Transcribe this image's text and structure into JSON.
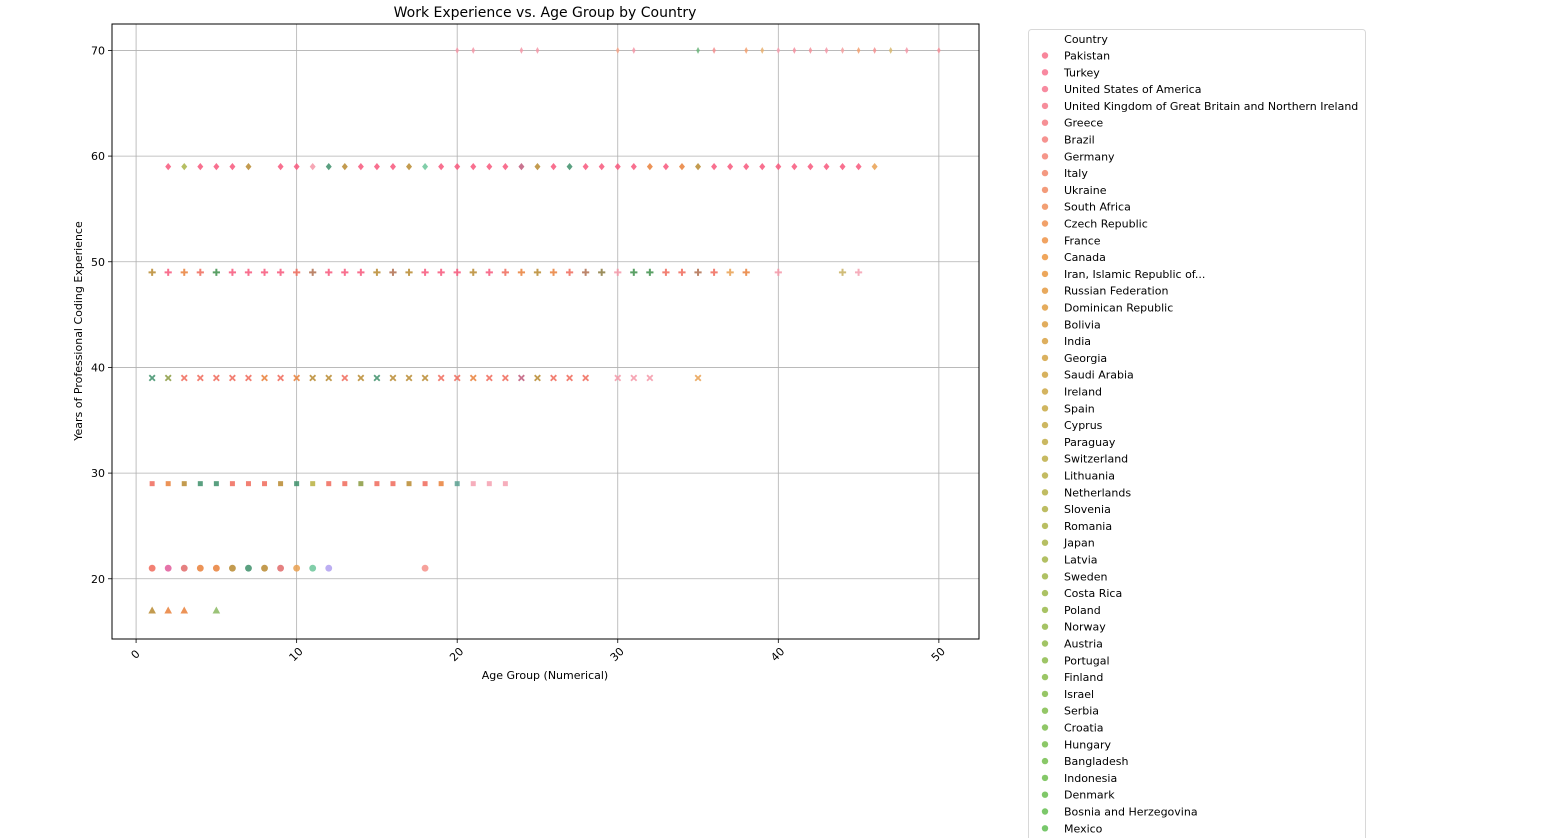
{
  "chart_data": {
    "type": "scatter",
    "title": "Work Experience vs. Age Group by Country",
    "xlabel": "Age Group (Numerical)",
    "ylabel": "Years of Professional Coding Experience",
    "xlim": [
      -1.5,
      52.5
    ],
    "ylim": [
      14.3,
      72.5
    ],
    "xticks": [
      0,
      10,
      20,
      30,
      40,
      50
    ],
    "yticks": [
      20,
      30,
      40,
      50,
      60,
      70
    ],
    "grid": true,
    "legend": {
      "title": "Country",
      "placement": "outside-right",
      "entries": [
        {
          "name": "Pakistan",
          "color": "#f77189"
        },
        {
          "name": "Turkey",
          "color": "#f7738f"
        },
        {
          "name": "United States of America",
          "color": "#f6778f"
        },
        {
          "name": "United Kingdom of Great Britain and Northern Ireland",
          "color": "#f5798a"
        },
        {
          "name": "Greece",
          "color": "#f47d83"
        },
        {
          "name": "Brazil",
          "color": "#f4807c"
        },
        {
          "name": "Germany",
          "color": "#f38475"
        },
        {
          "name": "Italy",
          "color": "#f2876b"
        },
        {
          "name": "Ukraine",
          "color": "#f18a63"
        },
        {
          "name": "South Africa",
          "color": "#f08e5a"
        },
        {
          "name": "Czech Republic",
          "color": "#ef9150"
        },
        {
          "name": "France",
          "color": "#ee9346"
        },
        {
          "name": "Canada",
          "color": "#ed963f"
        },
        {
          "name": "Iran, Islamic Republic of...",
          "color": "#e9983f"
        },
        {
          "name": "Russian Federation",
          "color": "#e49a41"
        },
        {
          "name": "Dominican Republic",
          "color": "#e09d41"
        },
        {
          "name": "Bolivia",
          "color": "#dc9f42"
        },
        {
          "name": "India",
          "color": "#d8a142"
        },
        {
          "name": "Georgia",
          "color": "#d4a343"
        },
        {
          "name": "Saudi Arabia",
          "color": "#d0a543"
        },
        {
          "name": "Ireland",
          "color": "#cca744"
        },
        {
          "name": "Spain",
          "color": "#c8a944"
        },
        {
          "name": "Cyprus",
          "color": "#c4aa45"
        },
        {
          "name": "Paraguay",
          "color": "#c1ac45"
        },
        {
          "name": "Switzerland",
          "color": "#bdae46"
        },
        {
          "name": "Lithuania",
          "color": "#b9af46"
        },
        {
          "name": "Netherlands",
          "color": "#b5b047"
        },
        {
          "name": "Slovenia",
          "color": "#b1b247"
        },
        {
          "name": "Romania",
          "color": "#adb347"
        },
        {
          "name": "Japan",
          "color": "#a9b448"
        },
        {
          "name": "Latvia",
          "color": "#a5b548"
        },
        {
          "name": "Sweden",
          "color": "#a1b649"
        },
        {
          "name": "Costa Rica",
          "color": "#9db749"
        },
        {
          "name": "Poland",
          "color": "#99b849"
        },
        {
          "name": "Norway",
          "color": "#95b94a"
        },
        {
          "name": "Austria",
          "color": "#91ba4a"
        },
        {
          "name": "Portugal",
          "color": "#8dbb4b"
        },
        {
          "name": "Finland",
          "color": "#89bc4b"
        },
        {
          "name": "Israel",
          "color": "#85bc4b"
        },
        {
          "name": "Serbia",
          "color": "#81bd4c"
        },
        {
          "name": "Croatia",
          "color": "#7cbd4c"
        },
        {
          "name": "Hungary",
          "color": "#78be4d"
        },
        {
          "name": "Bangladesh",
          "color": "#74be4d"
        },
        {
          "name": "Indonesia",
          "color": "#6fbe4e"
        },
        {
          "name": "Denmark",
          "color": "#6abe4f"
        },
        {
          "name": "Bosnia and Herzegovina",
          "color": "#65be50"
        },
        {
          "name": "Mexico",
          "color": "#60be52"
        }
      ]
    },
    "series": [
      {
        "y": 70,
        "marker": "thin_diamond",
        "points": [
          [
            20,
            "#f598a8"
          ],
          [
            21,
            "#f598a8"
          ],
          [
            24,
            "#f598a8"
          ],
          [
            25,
            "#f598a8"
          ],
          [
            30,
            "#f5a58a"
          ],
          [
            31,
            "#f598a8"
          ],
          [
            35,
            "#6bb57a"
          ],
          [
            36,
            "#f58f8f"
          ],
          [
            38,
            "#f3a070"
          ],
          [
            39,
            "#e9b070"
          ],
          [
            40,
            "#f5a0b0"
          ],
          [
            41,
            "#f58f9f"
          ],
          [
            42,
            "#f5909a"
          ],
          [
            43,
            "#f598a8"
          ],
          [
            44,
            "#f5a0a0"
          ],
          [
            45,
            "#f3a070"
          ],
          [
            46,
            "#f59090"
          ],
          [
            47,
            "#d8b870"
          ],
          [
            48,
            "#f598a8"
          ],
          [
            50,
            "#f5909a"
          ]
        ]
      },
      {
        "y": 59,
        "marker": "diamond",
        "points": [
          [
            2,
            "#f7577b"
          ],
          [
            3,
            "#a9b448"
          ],
          [
            4,
            "#f7577b"
          ],
          [
            5,
            "#f7577b"
          ],
          [
            6,
            "#f7577b"
          ],
          [
            7,
            "#b98a30"
          ],
          [
            9,
            "#f7577b"
          ],
          [
            10,
            "#f7577b"
          ],
          [
            11,
            "#f598a8"
          ],
          [
            12,
            "#3d8f6a"
          ],
          [
            13,
            "#b98a30"
          ],
          [
            14,
            "#f7577b"
          ],
          [
            15,
            "#f7577b"
          ],
          [
            16,
            "#f7577b"
          ],
          [
            17,
            "#b98a30"
          ],
          [
            18,
            "#6bc69a"
          ],
          [
            19,
            "#f7577b"
          ],
          [
            20,
            "#f7577b"
          ],
          [
            21,
            "#f7577b"
          ],
          [
            22,
            "#f7577b"
          ],
          [
            23,
            "#f7577b"
          ],
          [
            24,
            "#c05a7b"
          ],
          [
            25,
            "#b98a30"
          ],
          [
            26,
            "#f7577b"
          ],
          [
            27,
            "#3d8f6a"
          ],
          [
            28,
            "#f7577b"
          ],
          [
            29,
            "#f7577b"
          ],
          [
            30,
            "#f7577b"
          ],
          [
            31,
            "#f7577b"
          ],
          [
            32,
            "#e9803a"
          ],
          [
            33,
            "#f7577b"
          ],
          [
            34,
            "#e9803a"
          ],
          [
            35,
            "#b98a30"
          ],
          [
            36,
            "#f7577b"
          ],
          [
            37,
            "#f7577b"
          ],
          [
            38,
            "#f7577b"
          ],
          [
            39,
            "#f7577b"
          ],
          [
            40,
            "#f7577b"
          ],
          [
            41,
            "#f7577b"
          ],
          [
            42,
            "#f7577b"
          ],
          [
            43,
            "#f7577b"
          ],
          [
            44,
            "#f7577b"
          ],
          [
            45,
            "#f7577b"
          ],
          [
            46,
            "#e9a050"
          ]
        ]
      },
      {
        "y": 49,
        "marker": "plus",
        "points": [
          [
            1,
            "#b98a30"
          ],
          [
            2,
            "#f7577b"
          ],
          [
            3,
            "#e9803a"
          ],
          [
            4,
            "#f06a5a"
          ],
          [
            5,
            "#3d8f4a"
          ],
          [
            6,
            "#f7577b"
          ],
          [
            7,
            "#f7577b"
          ],
          [
            8,
            "#f7577b"
          ],
          [
            9,
            "#f7577b"
          ],
          [
            10,
            "#f06a5a"
          ],
          [
            11,
            "#b07050"
          ],
          [
            12,
            "#f7577b"
          ],
          [
            13,
            "#f7577b"
          ],
          [
            14,
            "#f7577b"
          ],
          [
            15,
            "#b98a30"
          ],
          [
            16,
            "#b07050"
          ],
          [
            17,
            "#b98a30"
          ],
          [
            18,
            "#f7577b"
          ],
          [
            19,
            "#f7577b"
          ],
          [
            20,
            "#f7577b"
          ],
          [
            21,
            "#b98a30"
          ],
          [
            22,
            "#f7577b"
          ],
          [
            23,
            "#f06a5a"
          ],
          [
            24,
            "#e9803a"
          ],
          [
            25,
            "#b98a30"
          ],
          [
            26,
            "#e9803a"
          ],
          [
            27,
            "#f06a5a"
          ],
          [
            28,
            "#b07050"
          ],
          [
            29,
            "#8a7a40"
          ],
          [
            30,
            "#f598a8"
          ],
          [
            31,
            "#3d8f4a"
          ],
          [
            32,
            "#3d8f4a"
          ],
          [
            33,
            "#f06a5a"
          ],
          [
            34,
            "#f06a5a"
          ],
          [
            35,
            "#b07050"
          ],
          [
            36,
            "#f06a5a"
          ],
          [
            37,
            "#e9a050"
          ],
          [
            38,
            "#e9803a"
          ],
          [
            40,
            "#f598a8"
          ],
          [
            44,
            "#c8b060"
          ],
          [
            45,
            "#f5a0b0"
          ]
        ]
      },
      {
        "y": 39,
        "marker": "x",
        "points": [
          [
            1,
            "#3d8f6a"
          ],
          [
            2,
            "#8a9a40"
          ],
          [
            3,
            "#f06a5a"
          ],
          [
            4,
            "#f06a5a"
          ],
          [
            5,
            "#f06a5a"
          ],
          [
            6,
            "#f06a5a"
          ],
          [
            7,
            "#f06a5a"
          ],
          [
            8,
            "#e9803a"
          ],
          [
            9,
            "#f06a5a"
          ],
          [
            10,
            "#e9803a"
          ],
          [
            11,
            "#b98a30"
          ],
          [
            12,
            "#b98a30"
          ],
          [
            13,
            "#f06a5a"
          ],
          [
            14,
            "#b98a30"
          ],
          [
            15,
            "#3d8f6a"
          ],
          [
            16,
            "#b98a30"
          ],
          [
            17,
            "#b98a30"
          ],
          [
            18,
            "#b98a30"
          ],
          [
            19,
            "#f06a5a"
          ],
          [
            20,
            "#f06a5a"
          ],
          [
            21,
            "#e9803a"
          ],
          [
            22,
            "#f06a5a"
          ],
          [
            23,
            "#f06a5a"
          ],
          [
            24,
            "#c05a7b"
          ],
          [
            25,
            "#b98a30"
          ],
          [
            26,
            "#f06a5a"
          ],
          [
            27,
            "#f06a5a"
          ],
          [
            28,
            "#f06a5a"
          ],
          [
            30,
            "#f598a8"
          ],
          [
            31,
            "#f598a8"
          ],
          [
            32,
            "#f598a8"
          ],
          [
            35,
            "#e9a050"
          ]
        ]
      },
      {
        "y": 29,
        "marker": "square",
        "points": [
          [
            1,
            "#f06a5a"
          ],
          [
            2,
            "#e9803a"
          ],
          [
            3,
            "#b98a30"
          ],
          [
            4,
            "#3d8f6a"
          ],
          [
            5,
            "#3d8f6a"
          ],
          [
            6,
            "#f06a5a"
          ],
          [
            7,
            "#f06a5a"
          ],
          [
            8,
            "#f06a5a"
          ],
          [
            9,
            "#b98a30"
          ],
          [
            10,
            "#3d8f6a"
          ],
          [
            11,
            "#b9b040"
          ],
          [
            12,
            "#f06a5a"
          ],
          [
            13,
            "#f06a5a"
          ],
          [
            14,
            "#8a9a40"
          ],
          [
            15,
            "#f06a5a"
          ],
          [
            16,
            "#f06a5a"
          ],
          [
            17,
            "#b98a30"
          ],
          [
            18,
            "#f06a5a"
          ],
          [
            19,
            "#e9803a"
          ],
          [
            20,
            "#5aa090"
          ],
          [
            21,
            "#f5a0b0"
          ],
          [
            22,
            "#f5a0b0"
          ],
          [
            23,
            "#f5a0b0"
          ]
        ]
      },
      {
        "y": 21,
        "marker": "circle",
        "points": [
          [
            1,
            "#f06a5a"
          ],
          [
            2,
            "#e05a9a"
          ],
          [
            3,
            "#e06a6a"
          ],
          [
            4,
            "#e9803a"
          ],
          [
            5,
            "#e9803a"
          ],
          [
            6,
            "#b98a30"
          ],
          [
            7,
            "#3d8f6a"
          ],
          [
            8,
            "#b98a30"
          ],
          [
            9,
            "#e06a6a"
          ],
          [
            10,
            "#e9a050"
          ],
          [
            11,
            "#6bc69a"
          ],
          [
            12,
            "#b0a0f0"
          ],
          [
            18,
            "#f5908a"
          ]
        ]
      },
      {
        "y": 17,
        "marker": "triangle",
        "points": [
          [
            1,
            "#b98a30"
          ],
          [
            2,
            "#e9803a"
          ],
          [
            3,
            "#e9803a"
          ],
          [
            5,
            "#8ab860"
          ]
        ]
      }
    ]
  }
}
